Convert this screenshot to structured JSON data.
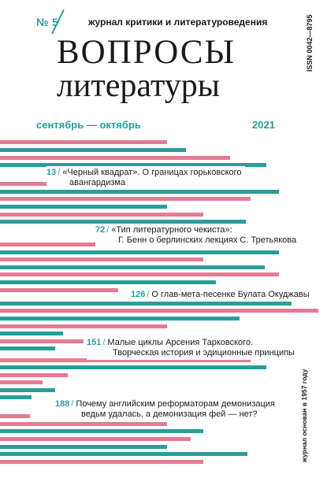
{
  "header": {
    "issue_number": "№ 5",
    "tagline": "журнал критики и литературоведения",
    "title_line1": "ВОПРОСЫ",
    "title_line2": "литературы",
    "issn": "ISSN 0042—8795",
    "period": "сентябрь — октябрь",
    "year": "2021",
    "founded": "журнал основан в 1957 году"
  },
  "toc": [
    {
      "page": "13",
      "line1": "«Черный квадрат». О границах горьковского",
      "line2": "авангардизма"
    },
    {
      "page": "72",
      "line1": "«Тип литературного чекиста»:",
      "line2": "Г. Бенн о берлинских лекциях С. Третьякова"
    },
    {
      "page": "126",
      "line1": "О глав-мета-песенке Булата Окуджавы",
      "line2": ""
    },
    {
      "page": "151",
      "line1": "Малые циклы Арсения Тарковского.",
      "line2": "Творческая история и эдиционные принципы"
    },
    {
      "page": "188",
      "line1": "Почему английским реформаторам демонизация",
      "line2": "ведьм удалась, а демонизация фей — нет?"
    }
  ],
  "toc_separator": "/",
  "colors": {
    "teal": "#2a9d9a",
    "pink": "#e47a93",
    "text": "#1a1a1a"
  }
}
